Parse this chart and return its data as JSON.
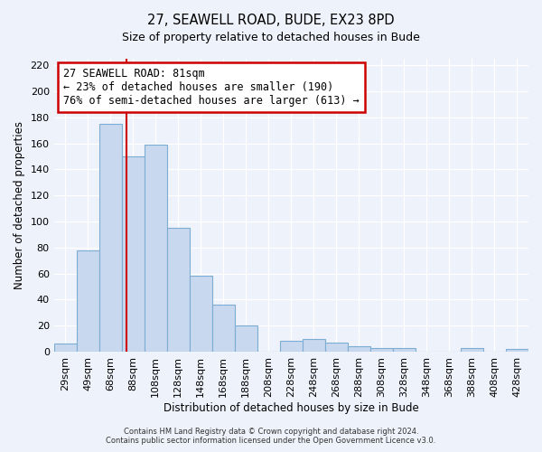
{
  "title": "27, SEAWELL ROAD, BUDE, EX23 8PD",
  "subtitle": "Size of property relative to detached houses in Bude",
  "xlabel": "Distribution of detached houses by size in Bude",
  "ylabel": "Number of detached properties",
  "categories": [
    "29sqm",
    "49sqm",
    "68sqm",
    "88sqm",
    "108sqm",
    "128sqm",
    "148sqm",
    "168sqm",
    "188sqm",
    "208sqm",
    "228sqm",
    "248sqm",
    "268sqm",
    "288sqm",
    "308sqm",
    "328sqm",
    "348sqm",
    "368sqm",
    "388sqm",
    "408sqm",
    "428sqm"
  ],
  "values": [
    6,
    78,
    175,
    150,
    159,
    95,
    58,
    36,
    20,
    0,
    8,
    10,
    7,
    4,
    3,
    3,
    0,
    0,
    3,
    0,
    2
  ],
  "bar_color": "#c8d8ee",
  "bar_edge_color": "#7eadd4",
  "vline_color": "#cc0000",
  "vline_position": 2.72,
  "annotation_title": "27 SEAWELL ROAD: 81sqm",
  "annotation_line1": "← 23% of detached houses are smaller (190)",
  "annotation_line2": "76% of semi-detached houses are larger (613) →",
  "annotation_box_color": "#ffffff",
  "annotation_box_edge": "#cc0000",
  "ylim": [
    0,
    225
  ],
  "yticks": [
    0,
    20,
    40,
    60,
    80,
    100,
    120,
    140,
    160,
    180,
    200,
    220
  ],
  "footer1": "Contains HM Land Registry data © Crown copyright and database right 2024.",
  "footer2": "Contains public sector information licensed under the Open Government Licence v3.0.",
  "background_color": "#eef2fa",
  "grid_color": "#ffffff",
  "title_fontsize": 10.5,
  "subtitle_fontsize": 9,
  "axis_label_fontsize": 8.5,
  "tick_fontsize": 8,
  "annotation_fontsize": 8.5,
  "footer_fontsize": 6
}
